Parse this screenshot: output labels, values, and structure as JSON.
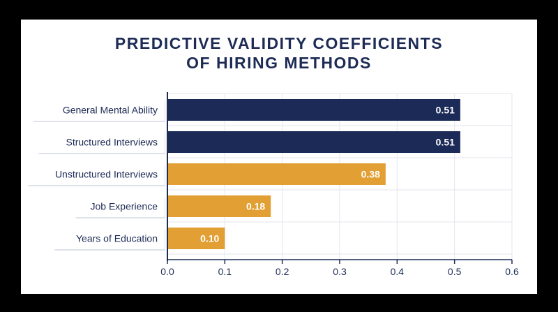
{
  "chart_data": {
    "type": "bar",
    "orientation": "horizontal",
    "title_line1": "PREDICTIVE VALIDITY COEFFICIENTS",
    "title_line2": "OF HIRING METHODS",
    "categories": [
      "General Mental Ability",
      "Structured Interviews",
      "Unstructured Interviews",
      "Job Experience",
      "Years of Education"
    ],
    "values": [
      0.51,
      0.51,
      0.38,
      0.18,
      0.1
    ],
    "value_labels": [
      "0.51",
      "0.51",
      "0.38",
      "0.18",
      "0.10"
    ],
    "bar_colors": [
      "#1b2a57",
      "#1b2a57",
      "#e29f33",
      "#e29f33",
      "#e29f33"
    ],
    "xlim": [
      0,
      0.6
    ],
    "xticks": [
      "0.0",
      "0.1",
      "0.2",
      "0.3",
      "0.4",
      "0.5",
      "0.6"
    ],
    "xlabel": "",
    "ylabel": "",
    "grid": true,
    "legend": false
  },
  "colors": {
    "background": "#000000",
    "card": "#ffffff",
    "title": "#1d2b55",
    "navy": "#1b2a57",
    "orange": "#e29f33",
    "grid": "#e4e6ed"
  }
}
